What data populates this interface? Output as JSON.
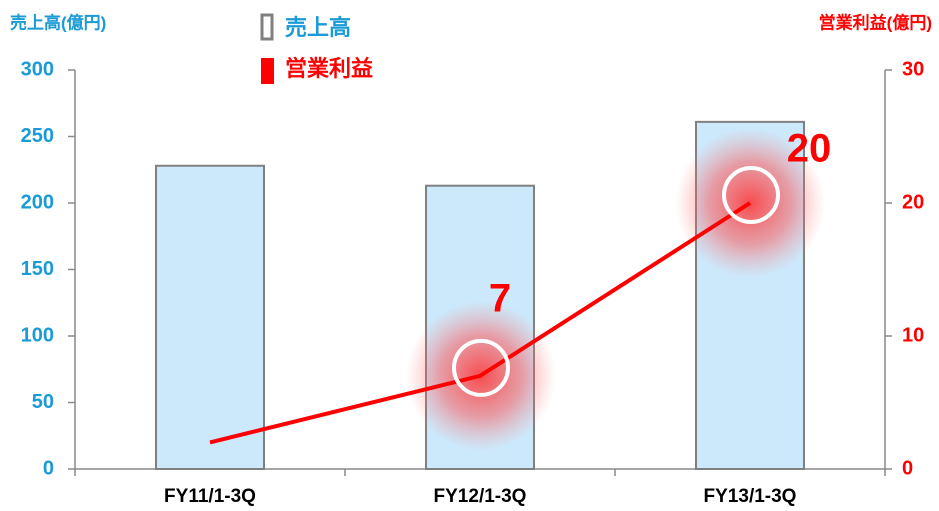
{
  "chart_data": {
    "type": "bar",
    "y_axis_label": "売上高(億円)",
    "y2_axis_label": "営業利益(億円)",
    "categories": [
      "FY11/1-3Q",
      "FY12/1-3Q",
      "FY13/1-3Q"
    ],
    "series": [
      {
        "name": "売上高",
        "type": "bar",
        "color": "#cce9fb",
        "edge_color": "#808080",
        "text_color": "#1a9ad6",
        "values": [
          228,
          213,
          261
        ]
      },
      {
        "name": "営業利益",
        "type": "line",
        "axis": "y2",
        "color": "#ff0000",
        "values": [
          2,
          7,
          20
        ],
        "value_labels": [
          null,
          "7",
          "20"
        ]
      }
    ],
    "ylim": [
      0,
      300
    ],
    "yticks": [
      0,
      50,
      100,
      150,
      200,
      250,
      300
    ],
    "y2lim": [
      0,
      30
    ],
    "y2ticks": [
      0,
      10,
      20,
      30
    ],
    "grid": false,
    "legend": "top"
  }
}
